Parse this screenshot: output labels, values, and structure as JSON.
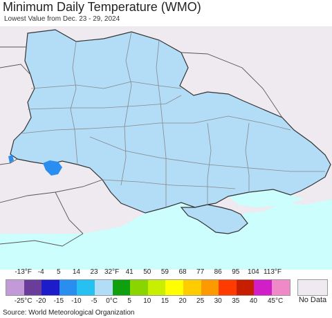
{
  "title": "Minimum Daily Temperature (WMO)",
  "subtitle": "Lowest Value from Dec. 23 - 29, 2024",
  "legend": {
    "fahrenheit": [
      "-13°F",
      "-4",
      "5",
      "14",
      "23",
      "32°F",
      "41",
      "50",
      "59",
      "68",
      "77",
      "86",
      "95",
      "104",
      "113°F"
    ],
    "celsius": [
      "-25°C",
      "-20",
      "-15",
      "-10",
      "-5",
      "0°C",
      "5",
      "10",
      "15",
      "20",
      "25",
      "30",
      "35",
      "40",
      "45°C"
    ],
    "colors": [
      "#c39ad8",
      "#6a3d9a",
      "#1c1cc8",
      "#2a8ef0",
      "#26c0f2",
      "#b3dcf7",
      "#0ea00e",
      "#8ad400",
      "#c8ee00",
      "#ffff00",
      "#ffcc00",
      "#ff9900",
      "#ff3b00",
      "#c81e00",
      "#d21ec8",
      "#f089c8"
    ],
    "no_data_label": "No Data",
    "no_data_color": "#eeeaef"
  },
  "source": "Source: World Meteorological Organization",
  "map_colors": {
    "land_outside": "#eeeaef",
    "ukraine_fill": "#b3dcf7",
    "cold_patch": "#2a8ef0",
    "sea": "#ccfefe",
    "border": "#333333",
    "admin_border": "#888888"
  }
}
